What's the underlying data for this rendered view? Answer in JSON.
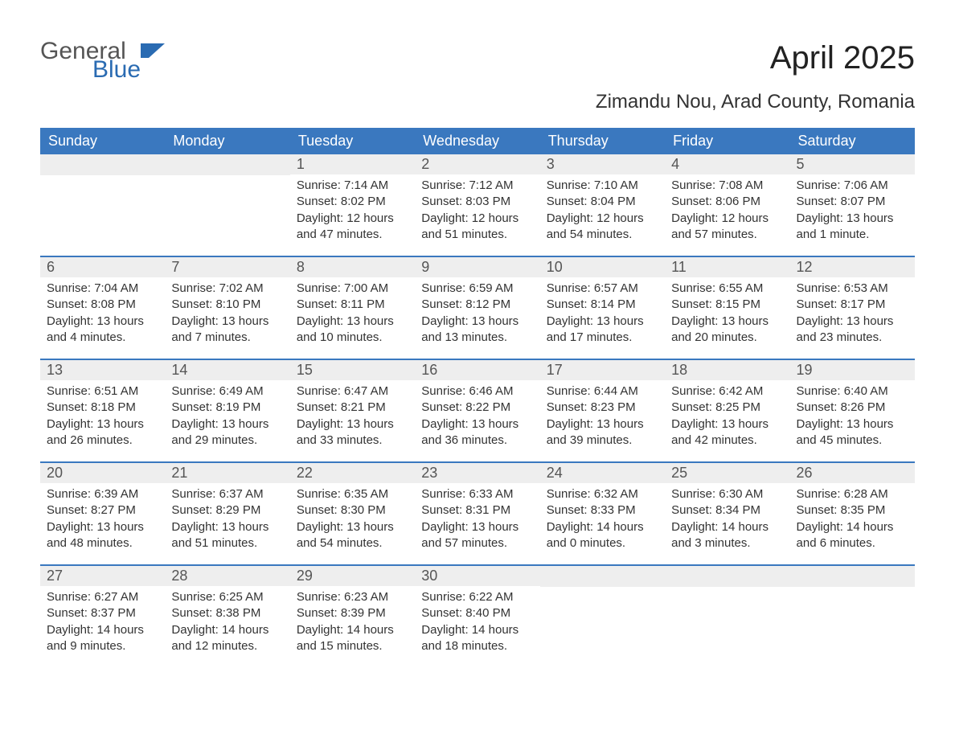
{
  "logo": {
    "text_general": "General",
    "text_blue": "Blue",
    "mark_color": "#2a6bb2",
    "general_color": "#555555",
    "blue_color": "#2a6bb2"
  },
  "title": "April 2025",
  "location": "Zimandu Nou, Arad County, Romania",
  "colors": {
    "header_bg": "#3a78bf",
    "header_text": "#ffffff",
    "daybar_bg": "#eeeeee",
    "daybar_text": "#555555",
    "body_text": "#333333",
    "week_border": "#3a78bf",
    "page_bg": "#ffffff"
  },
  "typography": {
    "title_fontsize": 40,
    "location_fontsize": 24,
    "header_fontsize": 18,
    "daynum_fontsize": 18,
    "content_fontsize": 15,
    "font_family": "Arial"
  },
  "day_headers": [
    "Sunday",
    "Monday",
    "Tuesday",
    "Wednesday",
    "Thursday",
    "Friday",
    "Saturday"
  ],
  "weeks": [
    [
      {
        "day": "",
        "sunrise": "",
        "sunset": "",
        "daylight": ""
      },
      {
        "day": "",
        "sunrise": "",
        "sunset": "",
        "daylight": ""
      },
      {
        "day": "1",
        "sunrise": "Sunrise: 7:14 AM",
        "sunset": "Sunset: 8:02 PM",
        "daylight": "Daylight: 12 hours and 47 minutes."
      },
      {
        "day": "2",
        "sunrise": "Sunrise: 7:12 AM",
        "sunset": "Sunset: 8:03 PM",
        "daylight": "Daylight: 12 hours and 51 minutes."
      },
      {
        "day": "3",
        "sunrise": "Sunrise: 7:10 AM",
        "sunset": "Sunset: 8:04 PM",
        "daylight": "Daylight: 12 hours and 54 minutes."
      },
      {
        "day": "4",
        "sunrise": "Sunrise: 7:08 AM",
        "sunset": "Sunset: 8:06 PM",
        "daylight": "Daylight: 12 hours and 57 minutes."
      },
      {
        "day": "5",
        "sunrise": "Sunrise: 7:06 AM",
        "sunset": "Sunset: 8:07 PM",
        "daylight": "Daylight: 13 hours and 1 minute."
      }
    ],
    [
      {
        "day": "6",
        "sunrise": "Sunrise: 7:04 AM",
        "sunset": "Sunset: 8:08 PM",
        "daylight": "Daylight: 13 hours and 4 minutes."
      },
      {
        "day": "7",
        "sunrise": "Sunrise: 7:02 AM",
        "sunset": "Sunset: 8:10 PM",
        "daylight": "Daylight: 13 hours and 7 minutes."
      },
      {
        "day": "8",
        "sunrise": "Sunrise: 7:00 AM",
        "sunset": "Sunset: 8:11 PM",
        "daylight": "Daylight: 13 hours and 10 minutes."
      },
      {
        "day": "9",
        "sunrise": "Sunrise: 6:59 AM",
        "sunset": "Sunset: 8:12 PM",
        "daylight": "Daylight: 13 hours and 13 minutes."
      },
      {
        "day": "10",
        "sunrise": "Sunrise: 6:57 AM",
        "sunset": "Sunset: 8:14 PM",
        "daylight": "Daylight: 13 hours and 17 minutes."
      },
      {
        "day": "11",
        "sunrise": "Sunrise: 6:55 AM",
        "sunset": "Sunset: 8:15 PM",
        "daylight": "Daylight: 13 hours and 20 minutes."
      },
      {
        "day": "12",
        "sunrise": "Sunrise: 6:53 AM",
        "sunset": "Sunset: 8:17 PM",
        "daylight": "Daylight: 13 hours and 23 minutes."
      }
    ],
    [
      {
        "day": "13",
        "sunrise": "Sunrise: 6:51 AM",
        "sunset": "Sunset: 8:18 PM",
        "daylight": "Daylight: 13 hours and 26 minutes."
      },
      {
        "day": "14",
        "sunrise": "Sunrise: 6:49 AM",
        "sunset": "Sunset: 8:19 PM",
        "daylight": "Daylight: 13 hours and 29 minutes."
      },
      {
        "day": "15",
        "sunrise": "Sunrise: 6:47 AM",
        "sunset": "Sunset: 8:21 PM",
        "daylight": "Daylight: 13 hours and 33 minutes."
      },
      {
        "day": "16",
        "sunrise": "Sunrise: 6:46 AM",
        "sunset": "Sunset: 8:22 PM",
        "daylight": "Daylight: 13 hours and 36 minutes."
      },
      {
        "day": "17",
        "sunrise": "Sunrise: 6:44 AM",
        "sunset": "Sunset: 8:23 PM",
        "daylight": "Daylight: 13 hours and 39 minutes."
      },
      {
        "day": "18",
        "sunrise": "Sunrise: 6:42 AM",
        "sunset": "Sunset: 8:25 PM",
        "daylight": "Daylight: 13 hours and 42 minutes."
      },
      {
        "day": "19",
        "sunrise": "Sunrise: 6:40 AM",
        "sunset": "Sunset: 8:26 PM",
        "daylight": "Daylight: 13 hours and 45 minutes."
      }
    ],
    [
      {
        "day": "20",
        "sunrise": "Sunrise: 6:39 AM",
        "sunset": "Sunset: 8:27 PM",
        "daylight": "Daylight: 13 hours and 48 minutes."
      },
      {
        "day": "21",
        "sunrise": "Sunrise: 6:37 AM",
        "sunset": "Sunset: 8:29 PM",
        "daylight": "Daylight: 13 hours and 51 minutes."
      },
      {
        "day": "22",
        "sunrise": "Sunrise: 6:35 AM",
        "sunset": "Sunset: 8:30 PM",
        "daylight": "Daylight: 13 hours and 54 minutes."
      },
      {
        "day": "23",
        "sunrise": "Sunrise: 6:33 AM",
        "sunset": "Sunset: 8:31 PM",
        "daylight": "Daylight: 13 hours and 57 minutes."
      },
      {
        "day": "24",
        "sunrise": "Sunrise: 6:32 AM",
        "sunset": "Sunset: 8:33 PM",
        "daylight": "Daylight: 14 hours and 0 minutes."
      },
      {
        "day": "25",
        "sunrise": "Sunrise: 6:30 AM",
        "sunset": "Sunset: 8:34 PM",
        "daylight": "Daylight: 14 hours and 3 minutes."
      },
      {
        "day": "26",
        "sunrise": "Sunrise: 6:28 AM",
        "sunset": "Sunset: 8:35 PM",
        "daylight": "Daylight: 14 hours and 6 minutes."
      }
    ],
    [
      {
        "day": "27",
        "sunrise": "Sunrise: 6:27 AM",
        "sunset": "Sunset: 8:37 PM",
        "daylight": "Daylight: 14 hours and 9 minutes."
      },
      {
        "day": "28",
        "sunrise": "Sunrise: 6:25 AM",
        "sunset": "Sunset: 8:38 PM",
        "daylight": "Daylight: 14 hours and 12 minutes."
      },
      {
        "day": "29",
        "sunrise": "Sunrise: 6:23 AM",
        "sunset": "Sunset: 8:39 PM",
        "daylight": "Daylight: 14 hours and 15 minutes."
      },
      {
        "day": "30",
        "sunrise": "Sunrise: 6:22 AM",
        "sunset": "Sunset: 8:40 PM",
        "daylight": "Daylight: 14 hours and 18 minutes."
      },
      {
        "day": "",
        "sunrise": "",
        "sunset": "",
        "daylight": ""
      },
      {
        "day": "",
        "sunrise": "",
        "sunset": "",
        "daylight": ""
      },
      {
        "day": "",
        "sunrise": "",
        "sunset": "",
        "daylight": ""
      }
    ]
  ]
}
